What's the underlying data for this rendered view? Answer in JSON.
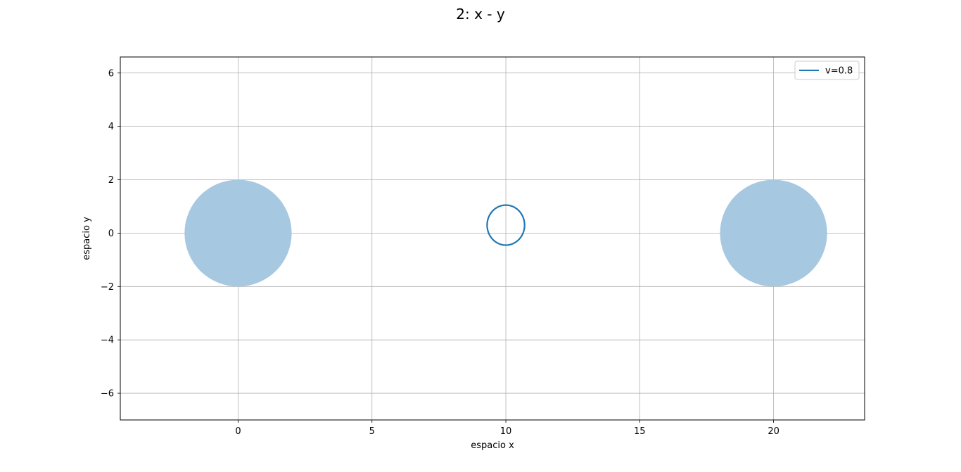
{
  "chart_data": {
    "type": "line",
    "title": "2: x - y",
    "xlabel": "espacio x",
    "ylabel": "espacio y",
    "xlim": [
      -4.4,
      23.4
    ],
    "ylim": [
      -7.0,
      6.6
    ],
    "xticks": [
      0,
      5,
      10,
      15,
      20
    ],
    "yticks": [
      -6,
      -4,
      -2,
      0,
      2,
      4,
      6
    ],
    "xtick_labels": [
      "0",
      "5",
      "10",
      "15",
      "20"
    ],
    "ytick_labels": [
      "−6",
      "−4",
      "−2",
      "0",
      "2",
      "4",
      "6"
    ],
    "grid": true,
    "legend_position": "top-right",
    "bodies": [
      {
        "x": 0,
        "y": 0,
        "r": 2,
        "color": "#a6c8e0"
      },
      {
        "x": 20,
        "y": 0,
        "r": 2,
        "color": "#a6c8e0"
      }
    ],
    "series": [
      {
        "name": "v=0.8",
        "color": "#1f77b4",
        "center": [
          10,
          0.3
        ],
        "rx": 0.7,
        "ry": 0.75
      }
    ]
  }
}
